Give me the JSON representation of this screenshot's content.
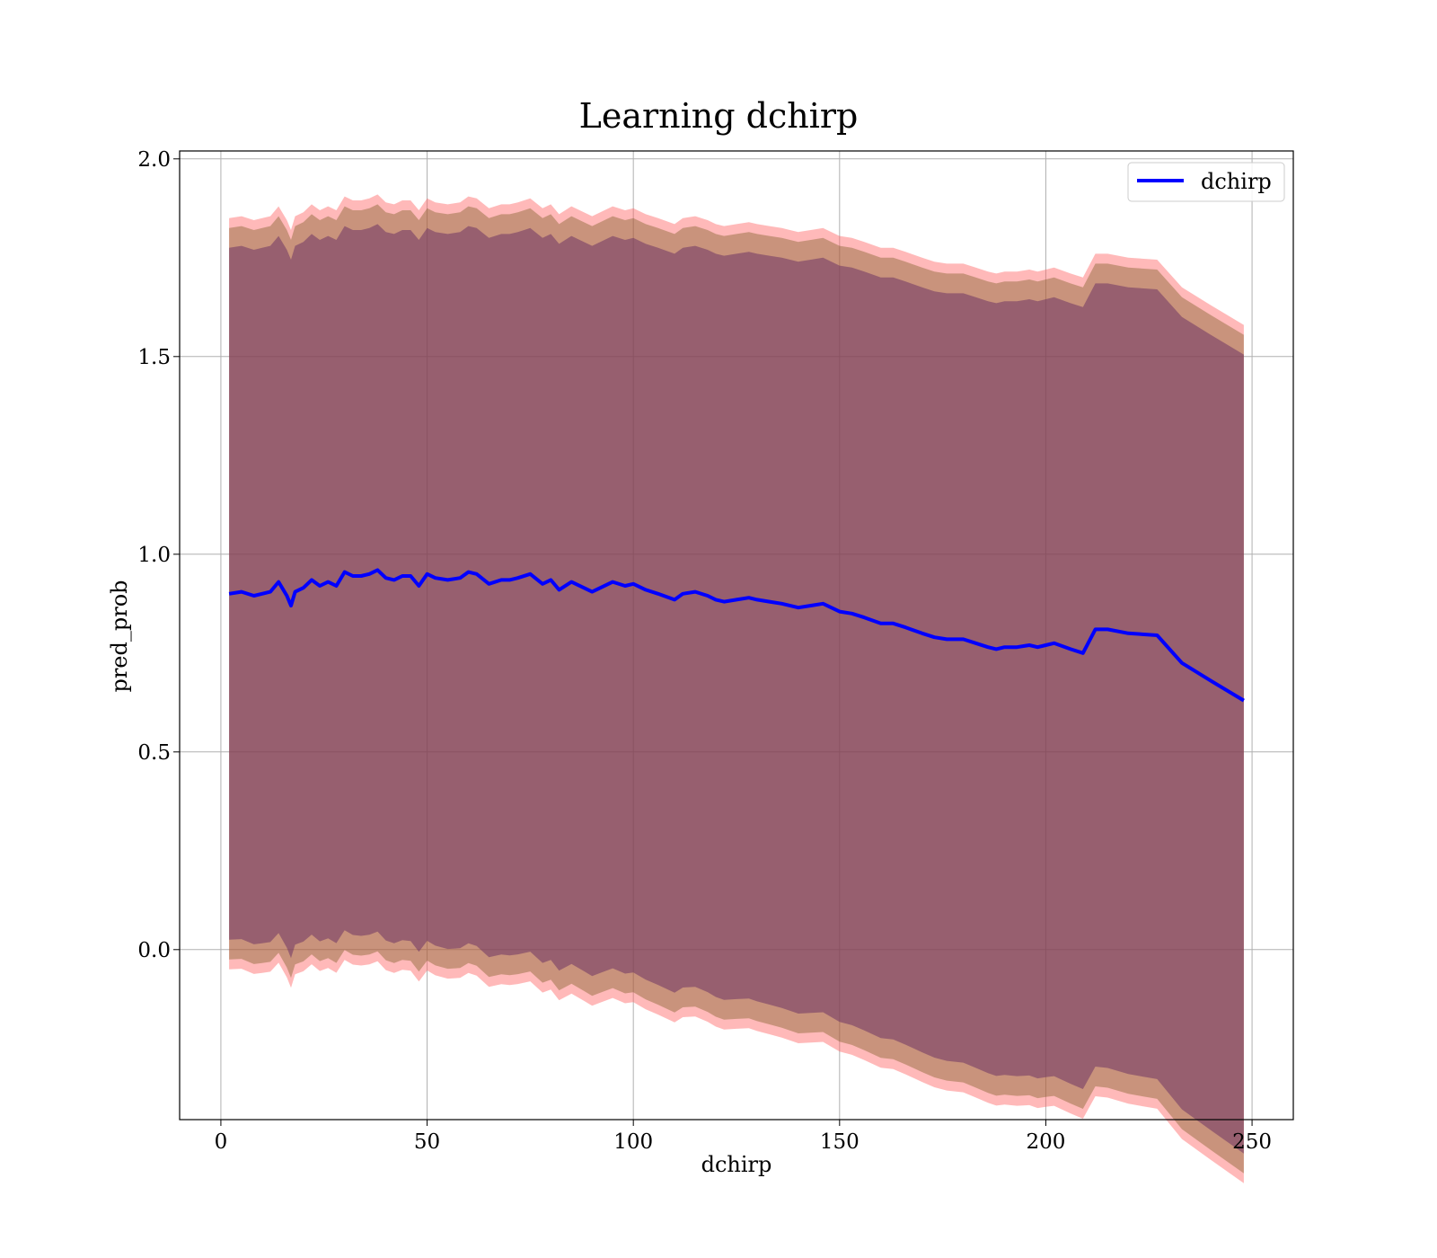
{
  "chart_data": {
    "type": "line",
    "title": "Learning dchirp",
    "xlabel": "dchirp",
    "ylabel": "pred_prob",
    "xlim": [
      -10,
      260
    ],
    "ylim": [
      -0.43,
      2.02
    ],
    "xticks": [
      0,
      50,
      100,
      150,
      200,
      250
    ],
    "xtick_labels": [
      "0",
      "50",
      "100",
      "150",
      "200",
      "250"
    ],
    "yticks": [
      0.0,
      0.5,
      1.0,
      1.5,
      2.0
    ],
    "ytick_labels": [
      "0.0",
      "0.5",
      "1.0",
      "1.5",
      "2.0"
    ],
    "grid": true,
    "legend_position": "upper right",
    "series": [
      {
        "name": "dchirp",
        "color": "#0000ff",
        "x": [
          2,
          5,
          8,
          10,
          12,
          14,
          16,
          17,
          18,
          20,
          22,
          24,
          26,
          28,
          30,
          32,
          34,
          36,
          38,
          40,
          42,
          44,
          46,
          48,
          50,
          52,
          55,
          58,
          60,
          62,
          65,
          68,
          70,
          72,
          75,
          78,
          80,
          82,
          85,
          88,
          90,
          92,
          95,
          98,
          100,
          103,
          106,
          110,
          112,
          115,
          118,
          120,
          122,
          125,
          128,
          130,
          133,
          136,
          140,
          143,
          146,
          150,
          153,
          156,
          160,
          163,
          166,
          170,
          173,
          176,
          180,
          183,
          186,
          188,
          190,
          193,
          196,
          198,
          200,
          202,
          206,
          209,
          212,
          215,
          220,
          227,
          233,
          240,
          248
        ],
        "y": [
          0.9,
          0.905,
          0.895,
          0.9,
          0.905,
          0.93,
          0.895,
          0.87,
          0.905,
          0.915,
          0.935,
          0.92,
          0.93,
          0.92,
          0.955,
          0.945,
          0.945,
          0.95,
          0.96,
          0.94,
          0.935,
          0.945,
          0.945,
          0.92,
          0.95,
          0.94,
          0.935,
          0.94,
          0.955,
          0.95,
          0.925,
          0.935,
          0.935,
          0.94,
          0.95,
          0.925,
          0.935,
          0.91,
          0.93,
          0.915,
          0.905,
          0.915,
          0.93,
          0.92,
          0.925,
          0.91,
          0.9,
          0.885,
          0.9,
          0.905,
          0.895,
          0.885,
          0.88,
          0.885,
          0.89,
          0.885,
          0.88,
          0.875,
          0.865,
          0.87,
          0.875,
          0.855,
          0.85,
          0.84,
          0.825,
          0.825,
          0.815,
          0.8,
          0.79,
          0.785,
          0.785,
          0.775,
          0.765,
          0.76,
          0.765,
          0.765,
          0.77,
          0.765,
          0.77,
          0.775,
          0.76,
          0.75,
          0.81,
          0.81,
          0.8,
          0.795,
          0.725,
          0.68,
          0.63
        ]
      }
    ],
    "bands": [
      {
        "color": "#ff6464",
        "alpha": 0.45,
        "upper_offset": 0.95,
        "lower_offset": -0.95,
        "spread_change_per_unit_x": 0.0011
      },
      {
        "color": "#785a20",
        "alpha": 0.4,
        "upper_offset": 0.925,
        "lower_offset": -0.925,
        "spread_change_per_unit_x": 0.0011
      },
      {
        "color": "#6e3464",
        "alpha": 0.55,
        "upper_offset": 0.875,
        "lower_offset": -0.875,
        "spread_change_per_unit_x": 0.0011
      }
    ]
  }
}
